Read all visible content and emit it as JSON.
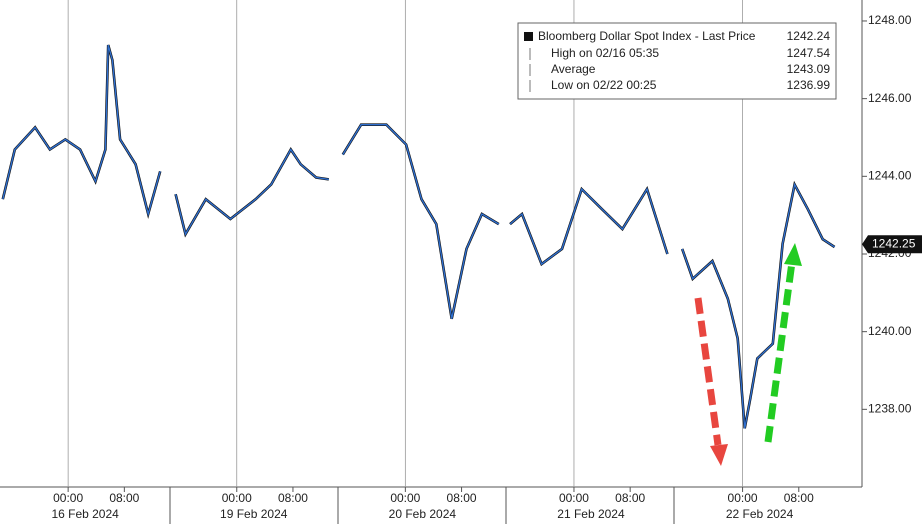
{
  "chart_data": {
    "type": "line",
    "series": [
      {
        "name": "Bloomberg Dollar Spot Index - Last Price",
        "color": "#2f6fcf",
        "last": 1242.24,
        "values": [
          1243.41,
          1244.69,
          1245.26,
          1244.69,
          1244.95,
          1244.69,
          1243.87,
          1244.69,
          1247.38,
          1246.99,
          1244.95,
          1244.31,
          1243.03,
          1244.13,
          null,
          1243.54,
          1242.51,
          1243.41,
          1242.9,
          1243.41,
          1243.79,
          1244.69,
          1244.31,
          1243.97,
          1243.92,
          null,
          1244.56,
          1245.33,
          1245.33,
          1244.82,
          1243.41,
          1242.77,
          1240.33,
          1242.13,
          1243.03,
          1242.77,
          null,
          1242.77,
          1243.03,
          1241.74,
          1242.13,
          1243.67,
          1243.15,
          1242.64,
          1243.67,
          1242.0,
          null,
          1242.13,
          1241.36,
          1241.82,
          1240.85,
          1239.82,
          1237.51,
          1238.28,
          1239.31,
          1239.69,
          1242.26,
          1243.79,
          1243.15,
          1242.38,
          1242.18
        ]
      }
    ],
    "x": [
      -9.3,
      -7.6,
      -4.7,
      -2.6,
      -0.4,
      1.7,
      3.9,
      5.3,
      5.7,
      6.3,
      7.4,
      9.6,
      11.4,
      13.1,
      null,
      15.3,
      16.7,
      19.6,
      23.1,
      26.7,
      28.9,
      31.7,
      33.1,
      35.3,
      37.1,
      null,
      39.1,
      41.7,
      45.3,
      48.1,
      50.3,
      52.4,
      54.6,
      56.7,
      58.9,
      61.3,
      null,
      62.9,
      64.6,
      67.4,
      70.3,
      73.1,
      76.0,
      78.9,
      82.4,
      85.3,
      null,
      87.4,
      88.9,
      91.7,
      93.9,
      95.3,
      96.3,
      97.1,
      98.1,
      100.3,
      101.7,
      103.4,
      105.3,
      107.4,
      109.1
    ],
    "stats": [
      {
        "label": "High on 02/16 05:35",
        "value": 1247.54
      },
      {
        "label": "Average",
        "value": 1243.09
      },
      {
        "label": "Low on 02/22 00:25",
        "value": 1236.99
      }
    ],
    "last_price": 1242.25,
    "xlim": [
      -9.7,
      113
    ],
    "ylim": [
      1236,
      1248.54
    ],
    "yticks": [
      {
        "value": 1238,
        "label": "1238.00"
      },
      {
        "value": 1240,
        "label": "1240.00"
      },
      {
        "value": 1242,
        "label": "1242.00"
      },
      {
        "value": 1244,
        "label": "1244.00"
      },
      {
        "value": 1246,
        "label": "1246.00"
      },
      {
        "value": 1248,
        "label": "1248.00"
      }
    ],
    "xticks": [
      {
        "value": 0,
        "label": "00:00"
      },
      {
        "value": 8,
        "label": "08:00"
      },
      {
        "value": 24,
        "label": "00:00"
      },
      {
        "value": 32,
        "label": "08:00"
      },
      {
        "value": 48,
        "label": "00:00"
      },
      {
        "value": 56,
        "label": "08:00"
      },
      {
        "value": 72,
        "label": "00:00"
      },
      {
        "value": 80,
        "label": "08:00"
      },
      {
        "value": 96,
        "label": "00:00"
      },
      {
        "value": 104,
        "label": "08:00"
      }
    ],
    "date_labels": [
      {
        "value": 0,
        "label": "16 Feb 2024"
      },
      {
        "value": 24,
        "label": "19 Feb 2024"
      },
      {
        "value": 48,
        "label": "20 Feb 2024"
      },
      {
        "value": 72,
        "label": "21 Feb 2024"
      },
      {
        "value": 96,
        "label": "22 Feb 2024"
      }
    ],
    "grid": true
  }
}
